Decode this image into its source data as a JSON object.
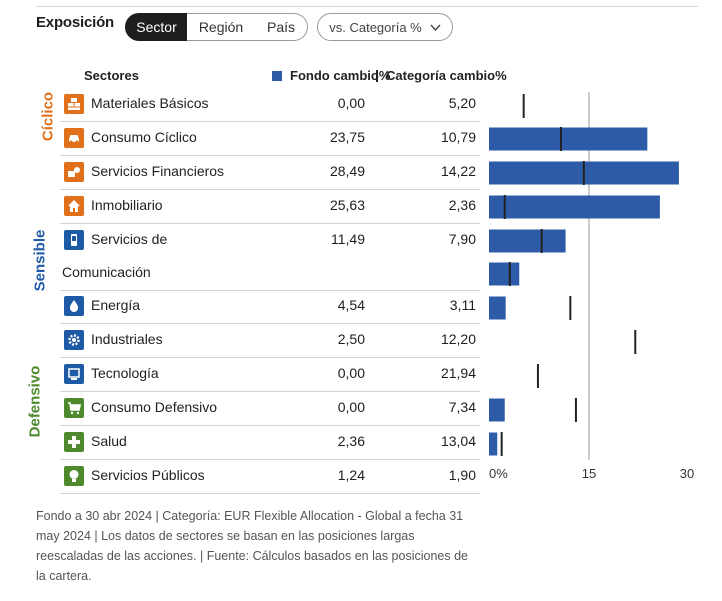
{
  "header": {
    "title": "Exposición",
    "tabs": [
      "Sector",
      "Región",
      "País"
    ],
    "active_tab": "Sector",
    "compare_label": "vs. Categoría %",
    "compare_icon": "chevron-down-icon"
  },
  "table": {
    "col_sectors": "Sectores",
    "col_fund": "Fondo  cambio%",
    "col_cat": "Categoría  cambio%"
  },
  "groups": {
    "ciclico": "Cíclico",
    "sensible": "Sensible",
    "defensivo": "Defensivo"
  },
  "colors": {
    "ciclico": "#e0701a",
    "sensible": "#1f5aa6",
    "defensivo": "#4e8a2d",
    "bar": "#2e5ba8",
    "marker": "#222222"
  },
  "rows": [
    {
      "name": "Materiales Básicos",
      "fund": "0,00",
      "cat": "5,20",
      "icon": "materials-icon"
    },
    {
      "name": "Consumo Cíclico",
      "fund": "23,75",
      "cat": "10,79",
      "icon": "car-icon"
    },
    {
      "name": "Servicios Financieros",
      "fund": "28,49",
      "cat": "14,22",
      "icon": "financial-icon"
    },
    {
      "name": "Inmobiliario",
      "fund": "25,63",
      "cat": "2,36",
      "icon": "home-icon"
    },
    {
      "name": "Servicios de",
      "name2": "Comunicación",
      "fund": "11,49",
      "cat": "7,90",
      "icon": "phone-icon"
    },
    {
      "name": "Energía",
      "fund": "4,54",
      "cat": "3,11",
      "icon": "flame-icon"
    },
    {
      "name": "Industriales",
      "fund": "2,50",
      "cat": "12,20",
      "icon": "gear-icon"
    },
    {
      "name": "Tecnología",
      "fund": "0,00",
      "cat": "21,94",
      "icon": "computer-icon"
    },
    {
      "name": "Consumo Defensivo",
      "fund": "0,00",
      "cat": "7,34",
      "icon": "cart-icon"
    },
    {
      "name": "Salud",
      "fund": "2,36",
      "cat": "13,04",
      "icon": "health-cross-icon"
    },
    {
      "name": "Servicios Públicos",
      "fund": "1,24",
      "cat": "1,90",
      "icon": "bulb-icon"
    }
  ],
  "chart_data": {
    "type": "bar",
    "orientation": "horizontal",
    "categories": [
      "Materiales Básicos",
      "Consumo Cíclico",
      "Servicios Financieros",
      "Inmobiliario",
      "Servicios de Comunicación",
      "Energía",
      "Industriales",
      "Tecnología",
      "Consumo Defensivo",
      "Salud",
      "Servicios Públicos"
    ],
    "series": [
      {
        "name": "Fondo cambio%",
        "values": [
          0.0,
          23.75,
          28.49,
          25.63,
          11.49,
          4.54,
          2.5,
          0.0,
          0.0,
          2.36,
          1.24
        ]
      },
      {
        "name": "Categoría cambio%",
        "values": [
          5.2,
          10.79,
          14.22,
          2.36,
          7.9,
          3.11,
          12.2,
          21.94,
          7.34,
          13.04,
          1.9
        ]
      }
    ],
    "xlim": [
      0,
      30
    ],
    "xticks": [
      "0%",
      "15",
      "30"
    ],
    "reference_line": 15
  },
  "footnote": "Fondo a 30 abr 2024 | Categoría: EUR Flexible Allocation - Global a fecha 31 may 2024 | Los datos de sectores se basan en las posiciones largas reescaladas de las acciones. | Fuente: Cálculos basados en las posiciones de la cartera."
}
